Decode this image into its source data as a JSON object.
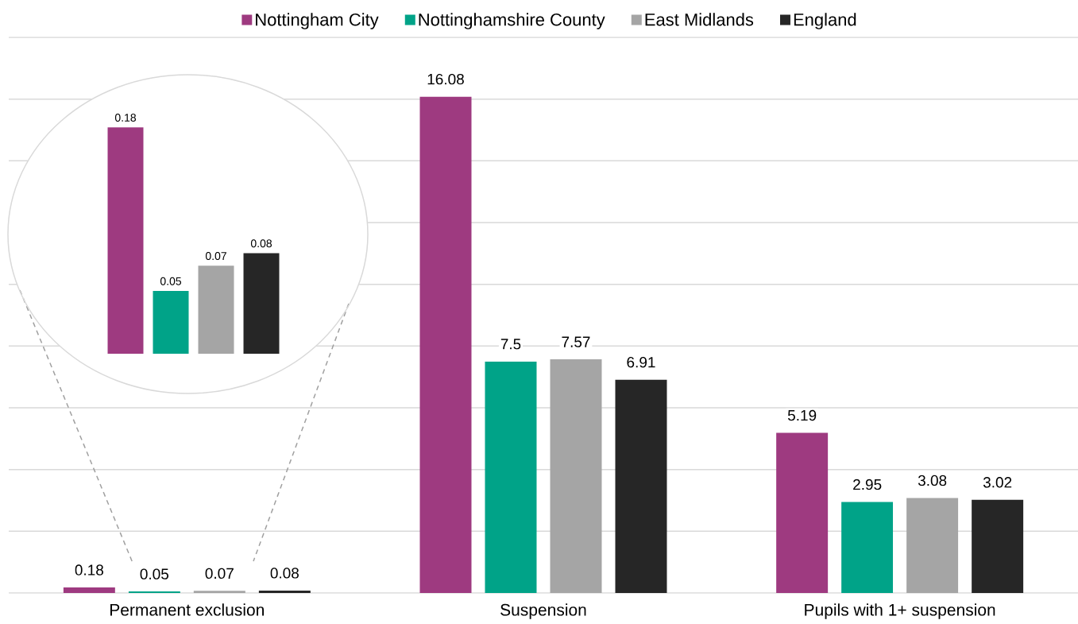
{
  "chart_data": [
    {
      "type": "bar",
      "categories": [
        "Permanent exclusion",
        "Suspension",
        "Pupils with 1+ suspension"
      ],
      "series": [
        {
          "name": "Nottingham City",
          "color": "#9e3a80",
          "values": [
            0.18,
            16.08,
            5.19
          ]
        },
        {
          "name": "Nottinghamshire County",
          "color": "#00a388",
          "values": [
            0.05,
            7.5,
            2.95
          ]
        },
        {
          "name": "East Midlands",
          "color": "#a5a5a5",
          "values": [
            0.07,
            7.57,
            3.08
          ]
        },
        {
          "name": "England",
          "color": "#262626",
          "values": [
            0.08,
            6.91,
            3.02
          ]
        }
      ],
      "ylim": [
        0,
        18
      ],
      "yticks": [
        {
          "value": 0,
          "label": null
        },
        {
          "value": 2,
          "label": null
        },
        {
          "value": 4,
          "label": null
        },
        {
          "value": 6,
          "label": null
        },
        {
          "value": 8,
          "label": null
        },
        {
          "value": 10,
          "label": null
        },
        {
          "value": 12,
          "label": null
        },
        {
          "value": 14,
          "label": null
        },
        {
          "value": 16,
          "label": null
        },
        {
          "value": 18,
          "label": null
        }
      ],
      "grid": "y",
      "legend": "top",
      "data_labels": true,
      "tick_labels": "x"
    },
    {
      "type": "bar",
      "categories": [
        null
      ],
      "series": [
        {
          "color": "#9e3a80",
          "values": [
            0.18
          ]
        },
        {
          "color": "#00a388",
          "values": [
            0.05
          ]
        },
        {
          "color": "#a5a5a5",
          "values": [
            0.07
          ]
        },
        {
          "color": "#262626",
          "values": [
            0.08
          ]
        }
      ],
      "data_labels": true,
      "tick_labels": false
    }
  ]
}
